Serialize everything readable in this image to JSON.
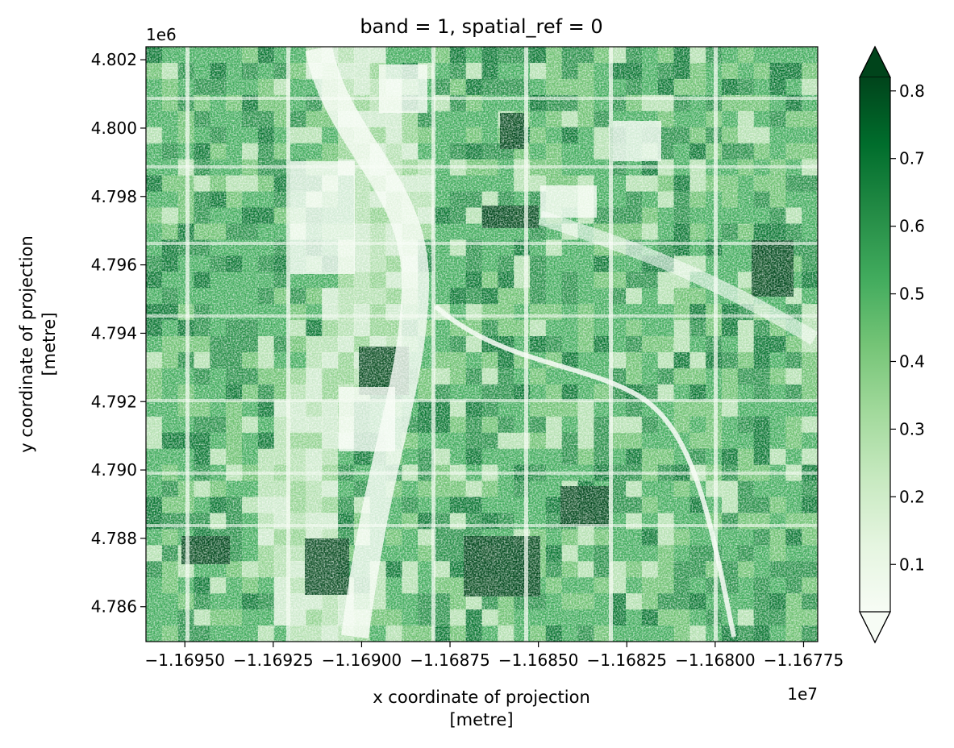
{
  "chart_data": {
    "type": "heatmap",
    "title": "band = 1, spatial_ref = 0",
    "xlabel_line1": "x coordinate of projection",
    "xlabel_line2": "[metre]",
    "ylabel_line1": "y coordinate of projection",
    "ylabel_line2": "[metre]",
    "x_offset_label": "1e7",
    "y_offset_label": "1e6",
    "xlim": [
      -1.16961,
      -1.16771
    ],
    "ylim": [
      4.78498,
      4.80238
    ],
    "x_ticks": [
      {
        "value": -1.1695,
        "label": "−1.16950"
      },
      {
        "value": -1.16925,
        "label": "−1.16925"
      },
      {
        "value": -1.169,
        "label": "−1.16900"
      },
      {
        "value": -1.16875,
        "label": "−1.16875"
      },
      {
        "value": -1.1685,
        "label": "−1.16850"
      },
      {
        "value": -1.16825,
        "label": "−1.16825"
      },
      {
        "value": -1.168,
        "label": "−1.16800"
      },
      {
        "value": -1.16775,
        "label": "−1.16775"
      }
    ],
    "y_ticks": [
      {
        "value": 4.786,
        "label": "4.786"
      },
      {
        "value": 4.788,
        "label": "4.788"
      },
      {
        "value": 4.79,
        "label": "4.790"
      },
      {
        "value": 4.792,
        "label": "4.792"
      },
      {
        "value": 4.794,
        "label": "4.794"
      },
      {
        "value": 4.796,
        "label": "4.796"
      },
      {
        "value": 4.798,
        "label": "4.798"
      },
      {
        "value": 4.8,
        "label": "4.800"
      },
      {
        "value": 4.802,
        "label": "4.802"
      }
    ],
    "colorbar": {
      "colormap": "Greens",
      "range": [
        0.03,
        0.82
      ],
      "extend": "both",
      "ticks": [
        {
          "value": 0.1,
          "label": "0.1"
        },
        {
          "value": 0.2,
          "label": "0.2"
        },
        {
          "value": 0.3,
          "label": "0.3"
        },
        {
          "value": 0.4,
          "label": "0.4"
        },
        {
          "value": 0.5,
          "label": "0.5"
        },
        {
          "value": 0.6,
          "label": "0.6"
        },
        {
          "value": 0.7,
          "label": "0.7"
        },
        {
          "value": 0.8,
          "label": "0.8"
        }
      ],
      "colors": [
        "#f7fcf5",
        "#e5f5e0",
        "#c7e9c0",
        "#a1d99b",
        "#74c476",
        "#41ab5d",
        "#238b45",
        "#006d2c",
        "#00441b"
      ]
    }
  }
}
